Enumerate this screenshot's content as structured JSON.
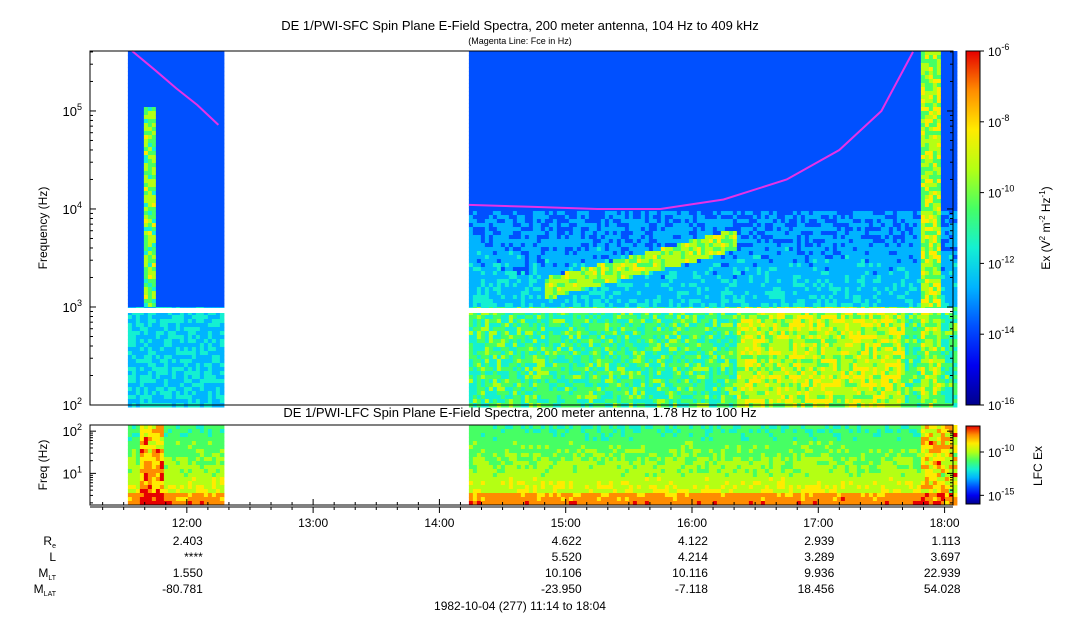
{
  "chart_data": [
    {
      "type": "heatmap",
      "title": "DE 1/PWI-SFC  Spin Plane E-Field Spectra, 200 meter antenna, 104 Hz to 409 kHz",
      "subtitle": "(Magenta Line: Fce in Hz)",
      "ylabel": "Frequency (Hz)",
      "y_scale": "log",
      "ylim": [
        100,
        409000
      ],
      "y_ticks": [
        {
          "value": 100,
          "base": "10",
          "exp": "2"
        },
        {
          "value": 1000,
          "base": "10",
          "exp": "3"
        },
        {
          "value": 10000,
          "base": "10",
          "exp": "4"
        },
        {
          "value": 100000,
          "base": "10",
          "exp": "5"
        }
      ],
      "colorbar": {
        "label_prefix": "Ex (V",
        "label_mid": " m",
        "label_mid2": " Hz",
        "label_suffix": ")",
        "label_sup1": "2",
        "label_sup2": "-2",
        "label_sup3": "-1",
        "scale": "log",
        "range": [
          1e-16,
          1e-06
        ],
        "ticks": [
          {
            "value": 1e-06,
            "base": "10",
            "exp": "-6"
          },
          {
            "value": 1e-08,
            "base": "10",
            "exp": "-8"
          },
          {
            "value": 1e-10,
            "base": "10",
            "exp": "-10"
          },
          {
            "value": 1e-12,
            "base": "10",
            "exp": "-12"
          },
          {
            "value": 1e-14,
            "base": "10",
            "exp": "-14"
          },
          {
            "value": 1e-16,
            "base": "10",
            "exp": "-16"
          }
        ]
      },
      "data_segments": [
        {
          "start": "11:32",
          "end": "12:17"
        },
        {
          "start": "14:14",
          "end": "18:04"
        }
      ],
      "fce_line": {
        "segments": [
          {
            "times": [
              "11:34",
              "11:45",
              "11:55",
              "12:05",
              "12:15"
            ],
            "freq_hz": [
              409000,
              260000,
              170000,
              115000,
              72000
            ]
          },
          {
            "times": [
              "14:14",
              "14:45",
              "15:15",
              "15:45",
              "16:15",
              "16:45",
              "17:10",
              "17:30",
              "17:45"
            ],
            "freq_hz": [
              11000,
              10500,
              10000,
              10000,
              12500,
              20000,
              40000,
              100000,
              400000
            ]
          }
        ]
      }
    },
    {
      "type": "heatmap",
      "title": "DE 1/PWI-LFC  Spin Plane E-Field Spectra, 200 meter antenna, 1.78 Hz to 100 Hz",
      "ylabel": "Freq (Hz)",
      "y_scale": "log",
      "ylim": [
        1.78,
        140
      ],
      "y_ticks": [
        {
          "value": 100,
          "base": "10",
          "exp": "2"
        },
        {
          "value": 10,
          "base": "10",
          "exp": "1"
        }
      ],
      "colorbar": {
        "label": "LFC Ex",
        "scale": "log",
        "range": [
          1e-16,
          1e-07
        ],
        "ticks": [
          {
            "value": 1e-10,
            "base": "10",
            "exp": "-10"
          },
          {
            "value": 1e-15,
            "base": "10",
            "exp": "-15"
          }
        ]
      },
      "data_segments": [
        {
          "start": "11:32",
          "end": "12:17"
        },
        {
          "start": "14:14",
          "end": "18:04"
        }
      ]
    }
  ],
  "x_axis": {
    "start": "11:14",
    "end": "18:04",
    "tick_labels": [
      "12:00",
      "13:00",
      "14:00",
      "15:00",
      "16:00",
      "17:00",
      "18:00"
    ],
    "footer": "1982-10-04 (277) 11:14 to 18:04"
  },
  "ephemeris": {
    "rows": [
      {
        "label": "R",
        "sub": "e",
        "values": [
          "2.403",
          "",
          "",
          "4.622",
          "4.122",
          "2.939",
          "1.113"
        ]
      },
      {
        "label": "L",
        "sub": "",
        "values": [
          "****",
          "",
          "",
          "5.520",
          "4.214",
          "3.289",
          "3.697"
        ]
      },
      {
        "label": "M",
        "sub": "LT",
        "values": [
          "1.550",
          "",
          "",
          "10.106",
          "10.116",
          "9.936",
          "22.939"
        ]
      },
      {
        "label": "M",
        "sub": "LAT",
        "values": [
          "-80.781",
          "",
          "",
          "-23.950",
          "-7.118",
          "18.456",
          "54.028"
        ]
      }
    ]
  },
  "colors": {
    "fce_line": "#e632e6",
    "colormap": [
      "#00008c",
      "#0000f0",
      "#0050ff",
      "#00b4ff",
      "#14f0d2",
      "#46ff64",
      "#b4ff14",
      "#ffeb00",
      "#ff8c00",
      "#e60000"
    ]
  }
}
